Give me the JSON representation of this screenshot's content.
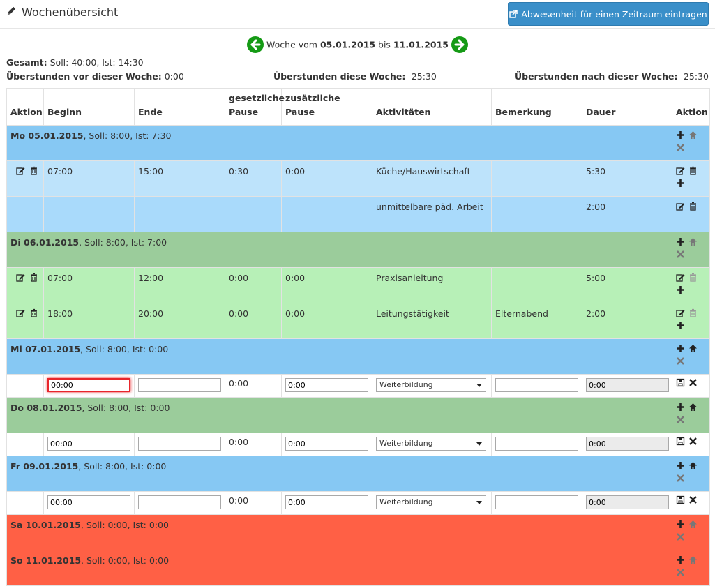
{
  "header": {
    "title": "Wochenübersicht",
    "absence_button": "Abwesenheit für einen Zeitraum eintragen"
  },
  "nav": {
    "prefix": "Woche vom",
    "from": "05.01.2015",
    "mid": "bis",
    "to": "11.01.2015"
  },
  "summary": {
    "label": "Gesamt:",
    "value": "Soll: 40:00, Ist: 14:30"
  },
  "overtime": {
    "before_label": "Überstunden vor dieser Woche:",
    "before_value": "0:00",
    "this_label": "Überstunden diese Woche:",
    "this_value": "-25:30",
    "after_label": "Überstunden nach dieser Woche:",
    "after_value": "-25:30"
  },
  "columns": {
    "aktion": "Aktion",
    "beginn": "Beginn",
    "ende": "Ende",
    "pause1": "gesetzliche",
    "pause1b": "Pause",
    "pause2": "zusätzliche",
    "pause2b": "Pause",
    "aktivitaeten": "Aktivitäten",
    "bemerkung": "Bemerkung",
    "dauer": "Dauer",
    "aktion2": "Aktion"
  },
  "days": [
    {
      "date": "Mo 05.01.2015",
      "info": ", Soll: 8:00, Ist: 7:30",
      "color": "#86c8f3"
    },
    {
      "date": "Di 06.01.2015",
      "info": ", Soll: 8:00, Ist: 7:00",
      "color": "#9bcc9b"
    },
    {
      "date": "Mi 07.01.2015",
      "info": ", Soll: 8:00, Ist: 0:00",
      "color": "#86c8f3"
    },
    {
      "date": "Do 08.01.2015",
      "info": ", Soll: 8:00, Ist: 0:00",
      "color": "#9bcc9b"
    },
    {
      "date": "Fr 09.01.2015",
      "info": ", Soll: 8:00, Ist: 0:00",
      "color": "#86c8f3"
    },
    {
      "date": "Sa 10.01.2015",
      "info": ", Soll: 0:00, Ist: 0:00",
      "color": "#ff6045"
    },
    {
      "date": "So 11.01.2015",
      "info": ", Soll: 0:00, Ist: 0:00",
      "color": "#ff6045"
    }
  ],
  "entries": {
    "mo1": {
      "beginn": "07:00",
      "ende": "15:00",
      "p1": "0:30",
      "p2": "0:00",
      "akt": "Küche/Hauswirtschaft",
      "bem": "",
      "dauer": "5:30"
    },
    "mo2": {
      "akt": "unmittelbare päd. Arbeit",
      "dauer": "2:00"
    },
    "di1": {
      "beginn": "07:00",
      "ende": "12:00",
      "p1": "0:00",
      "p2": "0:00",
      "akt": "Praxisanleitung",
      "bem": "",
      "dauer": "5:00"
    },
    "di2": {
      "beginn": "18:00",
      "ende": "20:00",
      "p1": "0:00",
      "p2": "0:00",
      "akt": "Leitungstätigkeit",
      "bem": "Elternabend",
      "dauer": "2:00"
    }
  },
  "edit": {
    "beginn": "00:00",
    "ende": "",
    "p1": "0:00",
    "p2": "0:00",
    "activity": "Weiterbildung",
    "bemerkung": "",
    "dauer": "0:00"
  },
  "icons": [
    "pencil-icon",
    "external-link-icon",
    "arrow-left-icon",
    "arrow-right-icon",
    "plus-icon",
    "home-icon",
    "times-icon",
    "edit-icon",
    "trash-icon",
    "save-icon"
  ]
}
